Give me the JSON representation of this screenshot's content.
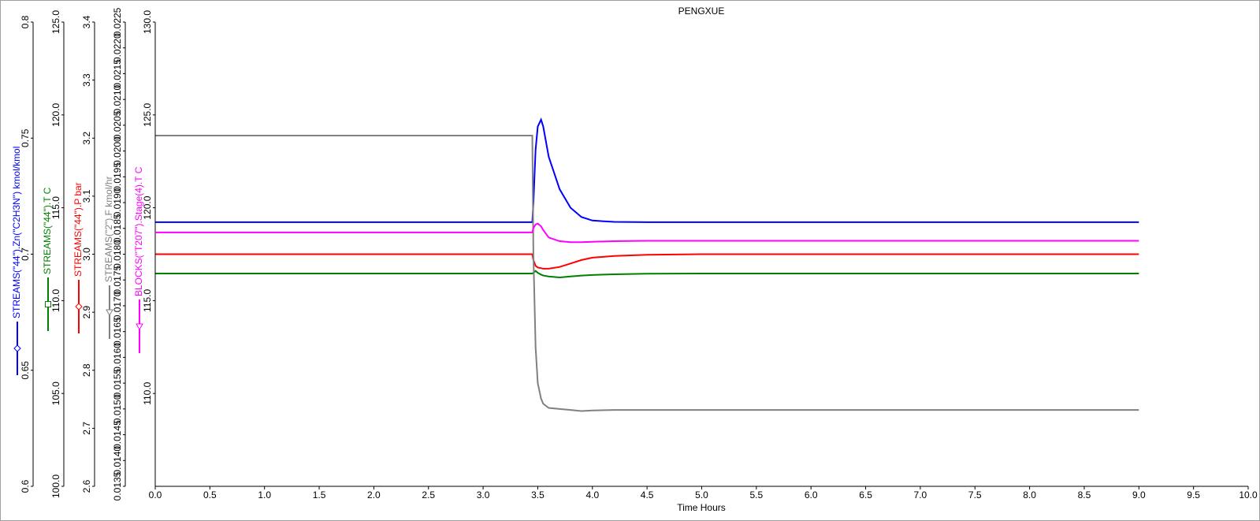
{
  "chart_data": {
    "type": "line",
    "title": "PENGXUE",
    "x_label": "Time Hours",
    "xlim": [
      0,
      10
    ],
    "xticks": [
      {
        "value": 0,
        "label": "0.0"
      },
      0.5,
      {
        "value": 1,
        "label": "1.0"
      },
      1.5,
      {
        "value": 2,
        "label": "2.0"
      },
      2.5,
      {
        "value": 3,
        "label": "3.0"
      },
      3.5,
      {
        "value": 4,
        "label": "4.0"
      },
      4.5,
      {
        "value": 5,
        "label": "5.0"
      },
      5.5,
      {
        "value": 6,
        "label": "6.0"
      },
      6.5,
      {
        "value": 7,
        "label": "7.0"
      },
      7.5,
      {
        "value": 8,
        "label": "8.0"
      },
      8.5,
      {
        "value": 9,
        "label": "9.0"
      },
      9.5,
      {
        "value": 10,
        "label": "10.0"
      }
    ],
    "x": [
      0,
      3.45,
      3.46,
      3.48,
      3.5,
      3.53,
      3.55,
      3.6,
      3.7,
      3.8,
      3.9,
      4.0,
      4.2,
      4.5,
      5,
      6,
      9
    ],
    "series": [
      {
        "name": "STREAMS(\"44\").Zn(\"C2H3N\") kmol/kmol",
        "color": "#0000ff",
        "marker": "diamond",
        "ylim": [
          0.6,
          0.8
        ],
        "yticks": [
          0.6,
          0.65,
          0.7,
          0.75,
          0.8
        ],
        "values": [
          0.7138,
          0.7138,
          0.722,
          0.745,
          0.755,
          0.758,
          0.755,
          0.742,
          0.728,
          0.72,
          0.716,
          0.7145,
          0.7139,
          0.7138,
          0.7138,
          0.7138,
          0.7138
        ]
      },
      {
        "name": "STREAMS(\"44\").T C",
        "color": "#008000",
        "marker": "square",
        "ylim": [
          100,
          125
        ],
        "yticks": [
          {
            "value": 100,
            "label": "100.0"
          },
          {
            "value": 105,
            "label": "105.0"
          },
          {
            "value": 110,
            "label": "110.0"
          },
          {
            "value": 115,
            "label": "115.0"
          },
          {
            "value": 120,
            "label": "120.0"
          },
          {
            "value": 125,
            "label": "125.0"
          }
        ],
        "values": [
          111.46,
          111.46,
          111.5,
          111.6,
          111.5,
          111.4,
          111.35,
          111.3,
          111.25,
          111.3,
          111.35,
          111.38,
          111.42,
          111.45,
          111.46,
          111.46,
          111.46
        ]
      },
      {
        "name": "STREAMS(\"44\").P bar",
        "color": "#ff0000",
        "marker": "diamond",
        "ylim": [
          2.6,
          3.4
        ],
        "yticks": [
          2.6,
          2.7,
          2.8,
          2.9,
          {
            "value": 3,
            "label": "3.0"
          },
          3.1,
          3.2,
          3.3,
          3.4
        ],
        "values": [
          3.0,
          3.0,
          2.99,
          2.98,
          2.977,
          2.976,
          2.975,
          2.975,
          2.978,
          2.984,
          2.99,
          2.994,
          2.997,
          2.999,
          3.0,
          3.0,
          3.0
        ]
      },
      {
        "name": "STREAMS(\"2\").F kmol/hr",
        "color": "#808080",
        "marker": "triangle",
        "ylim": [
          0.0135,
          0.0225
        ],
        "yticks": [
          0.0135,
          {
            "value": 0.014,
            "label": "0.0140"
          },
          0.0145,
          {
            "value": 0.015,
            "label": "0.0150"
          },
          0.0155,
          {
            "value": 0.016,
            "label": "0.0160"
          },
          0.0165,
          {
            "value": 0.017,
            "label": "0.0170"
          },
          0.0175,
          {
            "value": 0.018,
            "label": "0.0180"
          },
          0.0185,
          {
            "value": 0.019,
            "label": "0.0190"
          },
          0.0195,
          {
            "value": 0.02,
            "label": "0.0200"
          },
          0.0205,
          {
            "value": 0.021,
            "label": "0.0210"
          },
          0.0215,
          {
            "value": 0.022,
            "label": "0.0220"
          },
          0.0225
        ],
        "values": [
          0.0203,
          0.0203,
          0.018,
          0.0162,
          0.0155,
          0.0152,
          0.0151,
          0.01502,
          0.015,
          0.01498,
          0.01496,
          0.01497,
          0.01498,
          0.01498,
          0.01498,
          0.01498,
          0.01498
        ]
      },
      {
        "name": "BLOCKS(\"T207\").Stage(4).T C",
        "color": "#ff00ff",
        "marker": "triangle",
        "ylim": [
          105,
          130
        ],
        "yticks": [
          {
            "value": 110,
            "label": "110.0"
          },
          {
            "value": 115,
            "label": "115.0"
          },
          {
            "value": 120,
            "label": "120.0"
          },
          {
            "value": 125,
            "label": "125.0"
          },
          {
            "value": 130,
            "label": "130.0"
          }
        ],
        "values": [
          118.67,
          118.67,
          118.9,
          119.1,
          119.15,
          119.0,
          118.8,
          118.4,
          118.2,
          118.15,
          118.15,
          118.17,
          118.2,
          118.22,
          118.22,
          118.22,
          118.22
        ]
      }
    ]
  }
}
